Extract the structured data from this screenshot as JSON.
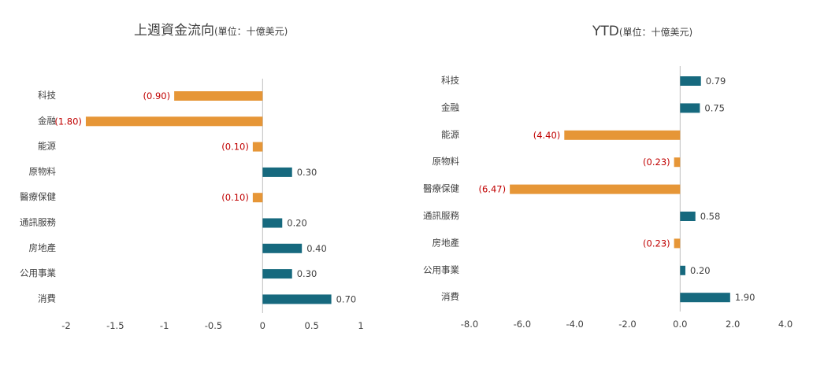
{
  "colors": {
    "positive": "#16697e",
    "negative": "#e69637",
    "neg_label": "#c00000",
    "label": "#404040",
    "axis": "#bfbfbf"
  },
  "chart_data": [
    {
      "type": "bar",
      "orientation": "horizontal",
      "title": "上週資金流向",
      "unit": "(單位：十億美元)",
      "categories": [
        "科技",
        "金融",
        "能源",
        "原物料",
        "醫療保健",
        "通訊服務",
        "房地產",
        "公用事業",
        "消費"
      ],
      "values": [
        -0.9,
        -1.8,
        -0.1,
        0.3,
        -0.1,
        0.2,
        0.4,
        0.3,
        0.7
      ],
      "value_labels": [
        "(0.90)",
        "(1.80)",
        "(0.10)",
        "0.30",
        "(0.10)",
        "0.20",
        "0.40",
        "0.30",
        "0.70"
      ],
      "xlim": [
        -2,
        1
      ],
      "xticks": [
        -2,
        -1.5,
        -1,
        -0.5,
        0,
        0.5,
        1
      ],
      "xtick_labels": [
        "-2",
        "-1.5",
        "-1",
        "-0.5",
        "0",
        "0.5",
        "1"
      ],
      "grid": false,
      "legend": "none"
    },
    {
      "type": "bar",
      "orientation": "horizontal",
      "title": "YTD",
      "unit": "(單位：十億美元)",
      "categories": [
        "科技",
        "金融",
        "能源",
        "原物料",
        "醫療保健",
        "通訊服務",
        "房地產",
        "公用事業",
        "消費"
      ],
      "values": [
        0.79,
        0.75,
        -4.4,
        -0.23,
        -6.47,
        0.58,
        -0.23,
        0.2,
        1.9
      ],
      "value_labels": [
        "0.79",
        "0.75",
        "(4.40)",
        "(0.23)",
        "(6.47)",
        "0.58",
        "(0.23)",
        "0.20",
        "1.90"
      ],
      "xlim": [
        -8,
        4
      ],
      "xticks": [
        -8,
        -6,
        -4,
        -2,
        0,
        2,
        4
      ],
      "xtick_labels": [
        "-8.0",
        "-6.0",
        "-4.0",
        "-2.0",
        "0.0",
        "2.0",
        "4.0"
      ],
      "grid": false,
      "legend": "none"
    }
  ]
}
